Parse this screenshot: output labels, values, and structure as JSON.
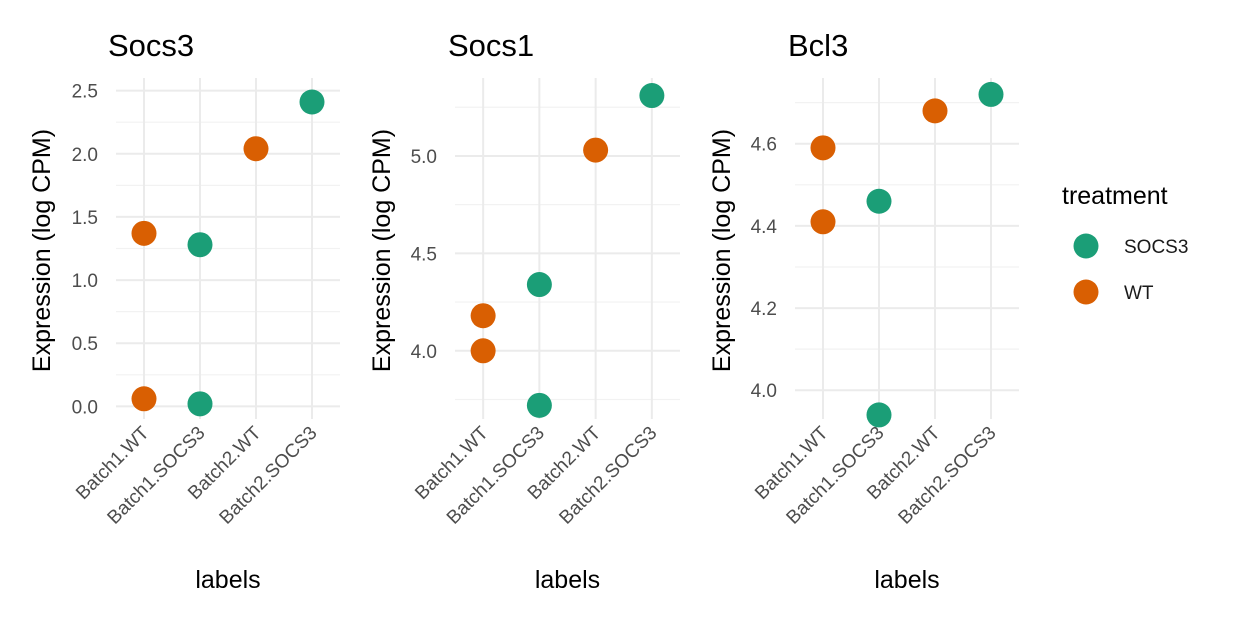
{
  "chart_data": [
    {
      "type": "scatter",
      "title": "Socs3",
      "xlabel": "labels",
      "ylabel": "Expression (log CPM)",
      "categories": [
        "Batch1.WT",
        "Batch1.SOCS3",
        "Batch2.WT",
        "Batch2.SOCS3"
      ],
      "yticks": [
        0.0,
        0.5,
        1.0,
        1.5,
        2.0,
        2.5
      ],
      "ytick_labels": [
        "0.0",
        "0.5",
        "1.0",
        "1.5",
        "2.0",
        "2.5"
      ],
      "ylim": [
        -0.1,
        2.6
      ],
      "grid": true,
      "points": [
        {
          "x": "Batch1.WT",
          "y": 1.37,
          "treatment": "WT"
        },
        {
          "x": "Batch1.WT",
          "y": 0.06,
          "treatment": "WT"
        },
        {
          "x": "Batch1.SOCS3",
          "y": 1.28,
          "treatment": "SOCS3"
        },
        {
          "x": "Batch1.SOCS3",
          "y": 0.02,
          "treatment": "SOCS3"
        },
        {
          "x": "Batch2.WT",
          "y": 2.04,
          "treatment": "WT"
        },
        {
          "x": "Batch2.SOCS3",
          "y": 2.41,
          "treatment": "SOCS3"
        }
      ]
    },
    {
      "type": "scatter",
      "title": "Socs1",
      "xlabel": "labels",
      "ylabel": "Expression (log CPM)",
      "categories": [
        "Batch1.WT",
        "Batch1.SOCS3",
        "Batch2.WT",
        "Batch2.SOCS3"
      ],
      "yticks": [
        4.0,
        4.5,
        5.0
      ],
      "ytick_labels": [
        "4.0",
        "4.5",
        "5.0"
      ],
      "ylim": [
        3.65,
        5.4
      ],
      "grid": true,
      "points": [
        {
          "x": "Batch1.WT",
          "y": 4.18,
          "treatment": "WT"
        },
        {
          "x": "Batch1.WT",
          "y": 4.0,
          "treatment": "WT"
        },
        {
          "x": "Batch1.SOCS3",
          "y": 4.34,
          "treatment": "SOCS3"
        },
        {
          "x": "Batch1.SOCS3",
          "y": 3.72,
          "treatment": "SOCS3"
        },
        {
          "x": "Batch2.WT",
          "y": 5.03,
          "treatment": "WT"
        },
        {
          "x": "Batch2.SOCS3",
          "y": 5.31,
          "treatment": "SOCS3"
        }
      ]
    },
    {
      "type": "scatter",
      "title": "Bcl3",
      "xlabel": "labels",
      "ylabel": "Expression (log CPM)",
      "categories": [
        "Batch1.WT",
        "Batch1.SOCS3",
        "Batch2.WT",
        "Batch2.SOCS3"
      ],
      "yticks": [
        4.0,
        4.2,
        4.4,
        4.6
      ],
      "ytick_labels": [
        "4.0",
        "4.2",
        "4.4",
        "4.6"
      ],
      "ylim": [
        3.93,
        4.76
      ],
      "grid": true,
      "points": [
        {
          "x": "Batch1.WT",
          "y": 4.59,
          "treatment": "WT"
        },
        {
          "x": "Batch1.WT",
          "y": 4.41,
          "treatment": "WT"
        },
        {
          "x": "Batch1.SOCS3",
          "y": 4.46,
          "treatment": "SOCS3"
        },
        {
          "x": "Batch1.SOCS3",
          "y": 3.94,
          "treatment": "SOCS3"
        },
        {
          "x": "Batch2.WT",
          "y": 4.68,
          "treatment": "WT"
        },
        {
          "x": "Batch2.SOCS3",
          "y": 4.72,
          "treatment": "SOCS3"
        }
      ]
    }
  ],
  "legend": {
    "title": "treatment",
    "placement": "right",
    "items": [
      {
        "label": "SOCS3",
        "color": "#1b9e77"
      },
      {
        "label": "WT",
        "color": "#d95f02"
      }
    ]
  }
}
